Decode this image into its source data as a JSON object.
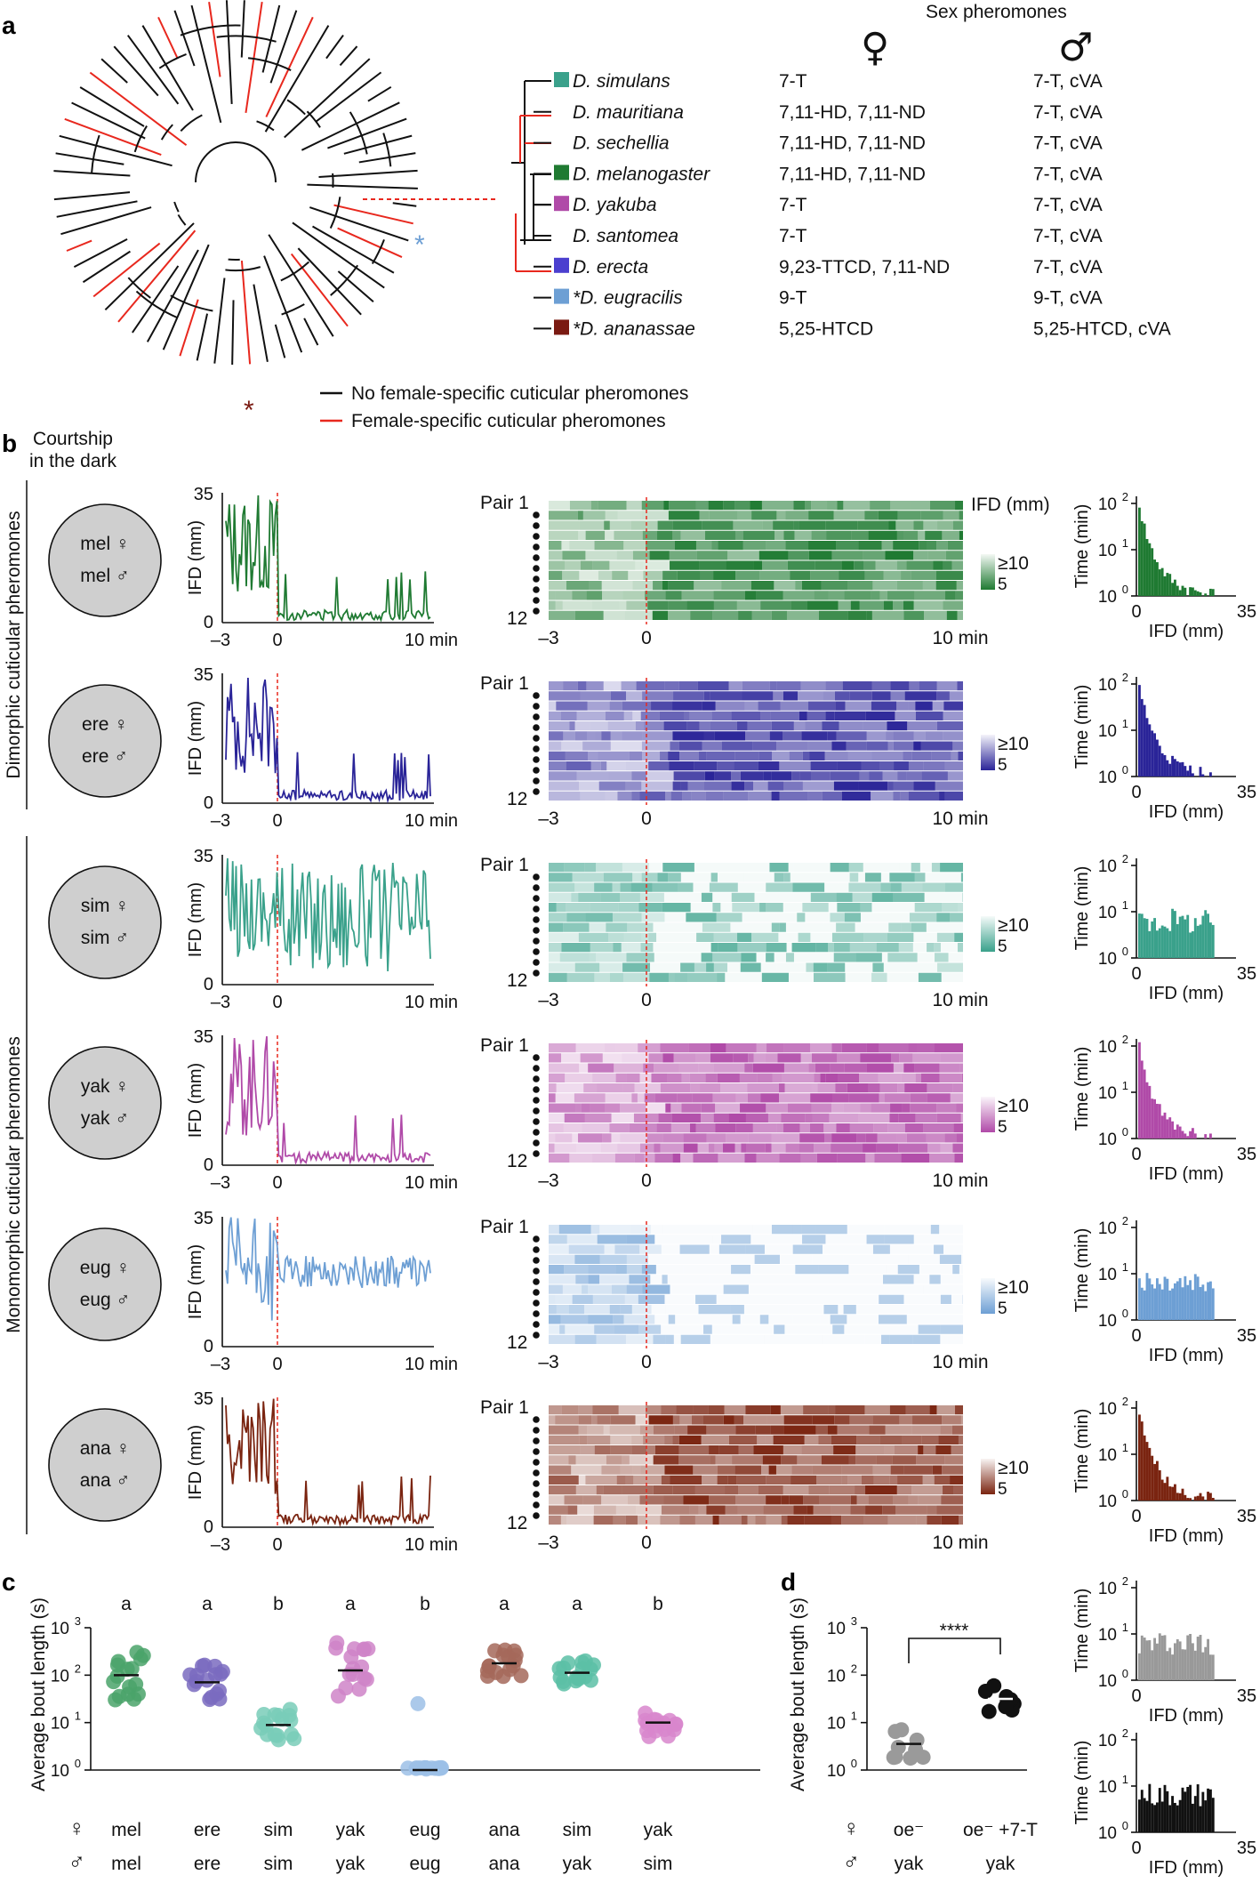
{
  "panels": [
    "a",
    "b",
    "c",
    "d"
  ],
  "panel_a": {
    "header": "Sex pheromones",
    "female_symbol": "♀",
    "male_symbol": "♂",
    "species": [
      {
        "name": "D. simulans",
        "color": "#3aa18b",
        "female": "7-T",
        "male": "7-T, cVA"
      },
      {
        "name": "D. mauritiana",
        "color": "",
        "female": "7,11-HD, 7,11-ND",
        "male": "7-T, cVA"
      },
      {
        "name": "D. sechellia",
        "color": "",
        "female": "7,11-HD, 7,11-ND",
        "male": "7-T, cVA"
      },
      {
        "name": "D. melanogaster",
        "color": "#1f7a32",
        "female": "7,11-HD, 7,11-ND",
        "male": "7-T, cVA"
      },
      {
        "name": "D. yakuba",
        "color": "#b04aa8",
        "female": "7-T",
        "male": "7-T, cVA"
      },
      {
        "name": "D. santomea",
        "color": "",
        "female": "7-T",
        "male": "7-T, cVA"
      },
      {
        "name": "D. erecta",
        "color": "#4b3fcf",
        "female": "9,23-TTCD, 7,11-ND",
        "male": "7-T, cVA"
      },
      {
        "name": "*D. eugracilis",
        "color": "#6d9fd4",
        "female": "9-T",
        "male": "9-T, cVA"
      },
      {
        "name": "*D. ananassae",
        "color": "#7a1a12",
        "female": "5,25-HTCD",
        "male": "5,25-HTCD, cVA"
      }
    ],
    "legend": [
      {
        "label": "No female-specific cuticular pheromones",
        "color": "#111111"
      },
      {
        "label": "Female-specific cuticular pheromones",
        "color": "#e8281e"
      }
    ],
    "asterisk": "*"
  },
  "panel_b": {
    "column_title_line1": "Courtship",
    "column_title_line2": "in the dark",
    "group_dimorphic": "Dimorphic cuticular pheromones",
    "group_monomorphic": "Monomorphic cuticular pheromones",
    "trace_ylabel": "IFD (mm)",
    "trace_yticks": [
      "35",
      "0"
    ],
    "trace_xticks": [
      "–3",
      "0",
      "10 min"
    ],
    "heat_pair_top": "Pair 1",
    "heat_pair_bottom": "12",
    "heat_xticks": [
      "–3",
      "0",
      "10 min"
    ],
    "heat_colorbar_title": "IFD (mm)",
    "heat_colorbar_top": "≥10",
    "heat_colorbar_bottom": "5",
    "hist_ylabel": "Time (min)",
    "hist_yticks": [
      "10",
      "10",
      "10"
    ],
    "hist_yexps": [
      "2",
      "1",
      "0"
    ],
    "hist_xlabel": "IFD (mm)",
    "hist_xticks": [
      "0",
      "35"
    ],
    "rows": [
      {
        "female": "mel ♀",
        "male": "mel ♂",
        "color": "#1f7a32"
      },
      {
        "female": "ere ♀",
        "male": "ere ♂",
        "color": "#2a2498"
      },
      {
        "female": "sim ♀",
        "male": "sim ♂",
        "color": "#3aa18b"
      },
      {
        "female": "yak ♀",
        "male": "yak ♂",
        "color": "#b04aa8"
      },
      {
        "female": "eug ♀",
        "male": "eug ♂",
        "color": "#6d9fd4"
      },
      {
        "female": "ana ♀",
        "male": "ana ♂",
        "color": "#7a2410"
      }
    ],
    "extra_hist_colors": [
      "#999999",
      "#111111"
    ]
  },
  "panel_c": {
    "ylabel": "Average bout length (s)",
    "yticks": [
      "10",
      "10",
      "10",
      "10"
    ],
    "yexps": [
      "3",
      "2",
      "1",
      "0"
    ],
    "female_symbol": "♀",
    "male_symbol": "♂",
    "groups": [
      {
        "letter": "a",
        "female": "mel",
        "male": "mel",
        "color": "#4aa36a"
      },
      {
        "letter": "a",
        "female": "ere",
        "male": "ere",
        "color": "#7a6bbf"
      },
      {
        "letter": "b",
        "female": "sim",
        "male": "sim",
        "color": "#79cdb8"
      },
      {
        "letter": "a",
        "female": "yak",
        "male": "yak",
        "color": "#cf84c8"
      },
      {
        "letter": "b",
        "female": "eug",
        "male": "eug",
        "color": "#9cc0e6"
      },
      {
        "letter": "a",
        "female": "ana",
        "male": "ana",
        "color": "#a4685a"
      },
      {
        "letter": "a",
        "female": "sim",
        "male": "yak",
        "color": "#5cc0a6"
      },
      {
        "letter": "b",
        "female": "yak",
        "male": "sim",
        "color": "#d886cc"
      }
    ]
  },
  "panel_d": {
    "ylabel": "Average bout length (s)",
    "yticks": [
      "10",
      "10",
      "10",
      "10"
    ],
    "yexps": [
      "3",
      "2",
      "1",
      "0"
    ],
    "significance": "****",
    "female_symbol": "♀",
    "male_symbol": "♂",
    "groups": [
      {
        "female": "oe⁻",
        "male": "yak",
        "color": "#9a9a9a"
      },
      {
        "female": "oe⁻ +7-T",
        "male": "yak",
        "color": "#111111"
      }
    ]
  }
}
